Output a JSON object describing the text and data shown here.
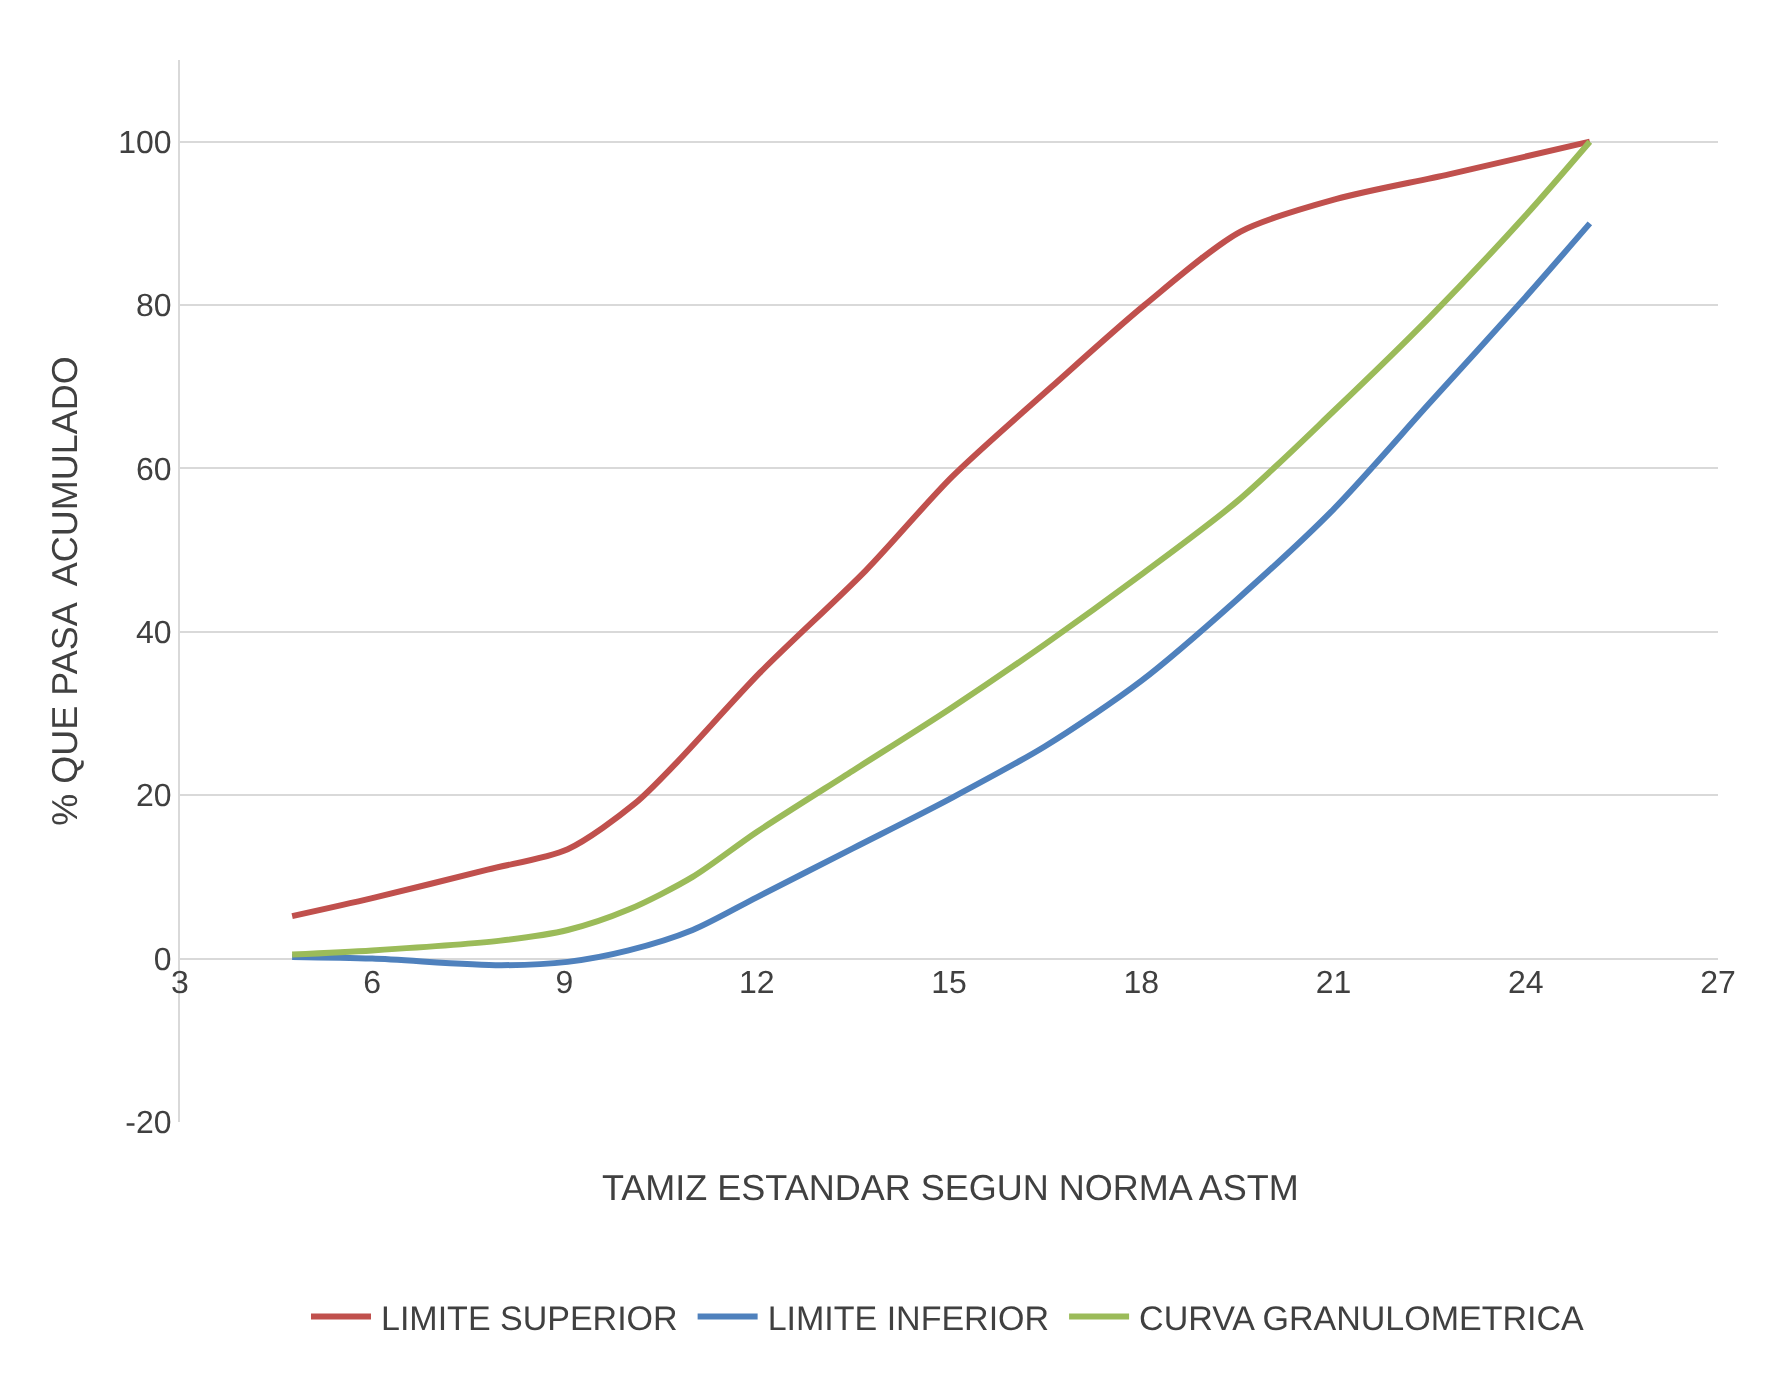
{
  "chart_data": {
    "type": "line",
    "xlabel": "TAMIZ ESTANDAR SEGUN NORMA ASTM",
    "ylabel": "% QUE PASA  ACUMULADO",
    "xlim": [
      3,
      27
    ],
    "xticks": [
      3,
      6,
      9,
      12,
      15,
      18,
      21,
      24,
      27
    ],
    "ylim": [
      -20,
      110
    ],
    "yticks": [
      -20,
      0,
      20,
      40,
      60,
      80,
      100
    ],
    "grid": "y",
    "legend": "bottom",
    "marker": "none",
    "line_style": "solid",
    "series": [
      {
        "name": "LIMITE SUPERIOR",
        "color": "#c0504d",
        "x": [
          4.75,
          6,
          7.8,
          9.05,
          10.1,
          10.75,
          12.05,
          13.7,
          15.05,
          16.6,
          18.05,
          19.55,
          21.05,
          22.8,
          25
        ],
        "values": [
          5.2,
          7.4,
          10.9,
          13.4,
          19,
          24,
          35,
          47.5,
          59,
          70,
          80,
          89,
          93,
          96,
          100
        ]
      },
      {
        "name": "LIMITE INFERIOR",
        "color": "#4f81bd",
        "x": [
          4.75,
          6,
          8,
          9.05,
          10,
          11,
          12,
          13.5,
          15,
          16.5,
          18,
          19.5,
          21,
          22.5,
          24,
          25
        ],
        "values": [
          0.2,
          0,
          -0.8,
          -0.4,
          1,
          3.5,
          7.5,
          13.5,
          19.5,
          26,
          34,
          44,
          55,
          68,
          81,
          90
        ]
      },
      {
        "name": "CURVA GRANULOMETRICA",
        "color": "#9bbb59",
        "x": [
          4.75,
          6,
          8,
          9.05,
          10,
          11,
          12,
          13.5,
          15,
          16.5,
          18,
          19.5,
          21,
          22.5,
          24,
          25
        ],
        "values": [
          0.5,
          1,
          2.2,
          3.5,
          6,
          10,
          15.5,
          23,
          30.5,
          38.5,
          47,
          56,
          67,
          78.5,
          91,
          100
        ]
      }
    ]
  }
}
